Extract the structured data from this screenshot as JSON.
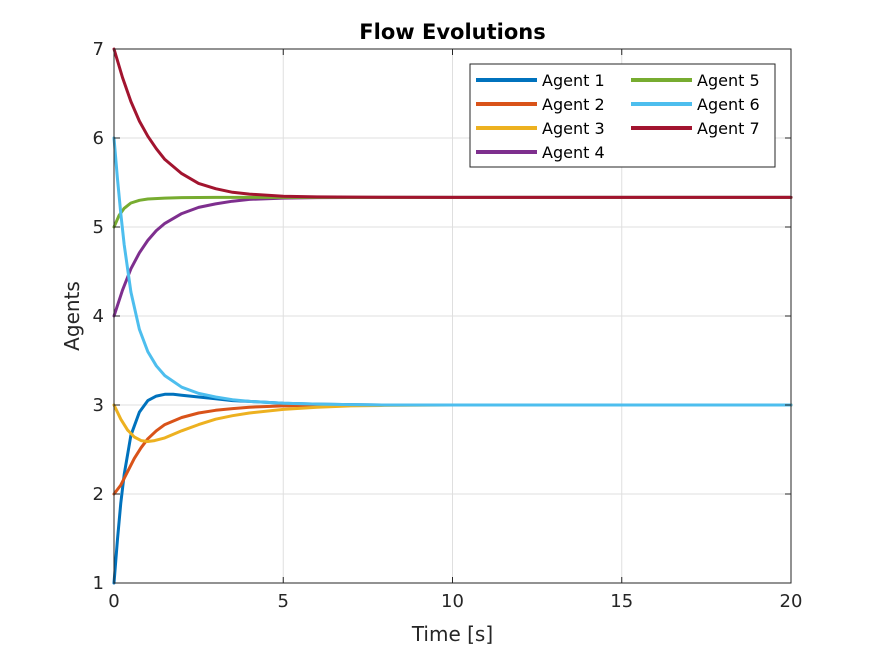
{
  "chart_data": {
    "type": "line",
    "title": "Flow Evolutions",
    "xlabel": "Time [s]",
    "ylabel": "Agents",
    "xlim": [
      0,
      20
    ],
    "ylim": [
      1,
      7
    ],
    "xticks": [
      0,
      5,
      10,
      15,
      20
    ],
    "yticks": [
      1,
      2,
      3,
      4,
      5,
      6,
      7
    ],
    "grid": true,
    "legend_position": "top-right",
    "legend_columns": 2,
    "series": [
      {
        "name": "Agent 1",
        "color": "#0072BD",
        "x": [
          0,
          0.1,
          0.2,
          0.3,
          0.5,
          0.75,
          1.0,
          1.25,
          1.5,
          1.75,
          2.0,
          2.5,
          3.0,
          3.5,
          4.0,
          5.0,
          6.0,
          7.0,
          8.0,
          10.0,
          12.0,
          15.0,
          20.0
        ],
        "y": [
          1.0,
          1.48,
          1.9,
          2.22,
          2.66,
          2.92,
          3.05,
          3.1,
          3.12,
          3.12,
          3.11,
          3.09,
          3.07,
          3.05,
          3.04,
          3.02,
          3.01,
          3.005,
          3.0,
          3.0,
          3.0,
          3.0,
          3.0
        ]
      },
      {
        "name": "Agent 2",
        "color": "#D95319",
        "x": [
          0,
          0.2,
          0.4,
          0.6,
          0.8,
          1.0,
          1.25,
          1.5,
          2.0,
          2.5,
          3.0,
          3.5,
          4.0,
          5.0,
          6.0,
          7.0,
          8.0,
          10.0,
          12.0,
          15.0,
          20.0
        ],
        "y": [
          2.0,
          2.1,
          2.25,
          2.4,
          2.52,
          2.62,
          2.71,
          2.78,
          2.86,
          2.91,
          2.94,
          2.96,
          2.975,
          2.99,
          2.995,
          3.0,
          3.0,
          3.0,
          3.0,
          3.0,
          3.0
        ]
      },
      {
        "name": "Agent 3",
        "color": "#EDB120",
        "x": [
          0,
          0.2,
          0.4,
          0.6,
          0.8,
          1.0,
          1.2,
          1.5,
          2.0,
          2.5,
          3.0,
          3.5,
          4.0,
          5.0,
          6.0,
          7.0,
          8.0,
          10.0,
          12.0,
          15.0,
          20.0
        ],
        "y": [
          3.0,
          2.84,
          2.72,
          2.64,
          2.6,
          2.59,
          2.6,
          2.63,
          2.71,
          2.78,
          2.84,
          2.88,
          2.91,
          2.95,
          2.975,
          2.99,
          2.995,
          3.0,
          3.0,
          3.0,
          3.0
        ]
      },
      {
        "name": "Agent 4",
        "color": "#7E2F8E",
        "x": [
          0,
          0.25,
          0.5,
          0.75,
          1.0,
          1.25,
          1.5,
          2.0,
          2.5,
          3.0,
          3.5,
          4.0,
          5.0,
          6.0,
          8.0,
          10.0,
          15.0,
          20.0
        ],
        "y": [
          4.0,
          4.29,
          4.53,
          4.71,
          4.85,
          4.96,
          5.04,
          5.15,
          5.22,
          5.26,
          5.29,
          5.31,
          5.325,
          5.33,
          5.333,
          5.333,
          5.333,
          5.333
        ]
      },
      {
        "name": "Agent 5",
        "color": "#77AC30",
        "x": [
          0,
          0.15,
          0.3,
          0.5,
          0.75,
          1.0,
          1.5,
          2.0,
          3.0,
          5.0,
          7.0,
          10.0,
          15.0,
          20.0
        ],
        "y": [
          5.0,
          5.13,
          5.21,
          5.27,
          5.3,
          5.315,
          5.325,
          5.33,
          5.333,
          5.333,
          5.333,
          5.333,
          5.333,
          5.333
        ]
      },
      {
        "name": "Agent 6",
        "color": "#4DBEEE",
        "x": [
          0,
          0.1,
          0.2,
          0.3,
          0.5,
          0.75,
          1.0,
          1.25,
          1.5,
          2.0,
          2.5,
          3.0,
          3.5,
          4.0,
          5.0,
          6.0,
          7.0,
          8.0,
          10.0,
          12.0,
          15.0,
          20.0
        ],
        "y": [
          6.0,
          5.55,
          5.15,
          4.8,
          4.27,
          3.85,
          3.6,
          3.44,
          3.33,
          3.2,
          3.13,
          3.09,
          3.06,
          3.04,
          3.02,
          3.01,
          3.005,
          3.0,
          3.0,
          3.0,
          3.0,
          3.0
        ]
      },
      {
        "name": "Agent 7",
        "color": "#A2142F",
        "x": [
          0,
          0.25,
          0.5,
          0.75,
          1.0,
          1.25,
          1.5,
          2.0,
          2.5,
          3.0,
          3.5,
          4.0,
          5.0,
          6.0,
          8.0,
          10.0,
          15.0,
          20.0
        ],
        "y": [
          7.0,
          6.68,
          6.41,
          6.19,
          6.02,
          5.88,
          5.76,
          5.6,
          5.49,
          5.43,
          5.39,
          5.37,
          5.345,
          5.338,
          5.334,
          5.333,
          5.333,
          5.333
        ]
      }
    ]
  }
}
